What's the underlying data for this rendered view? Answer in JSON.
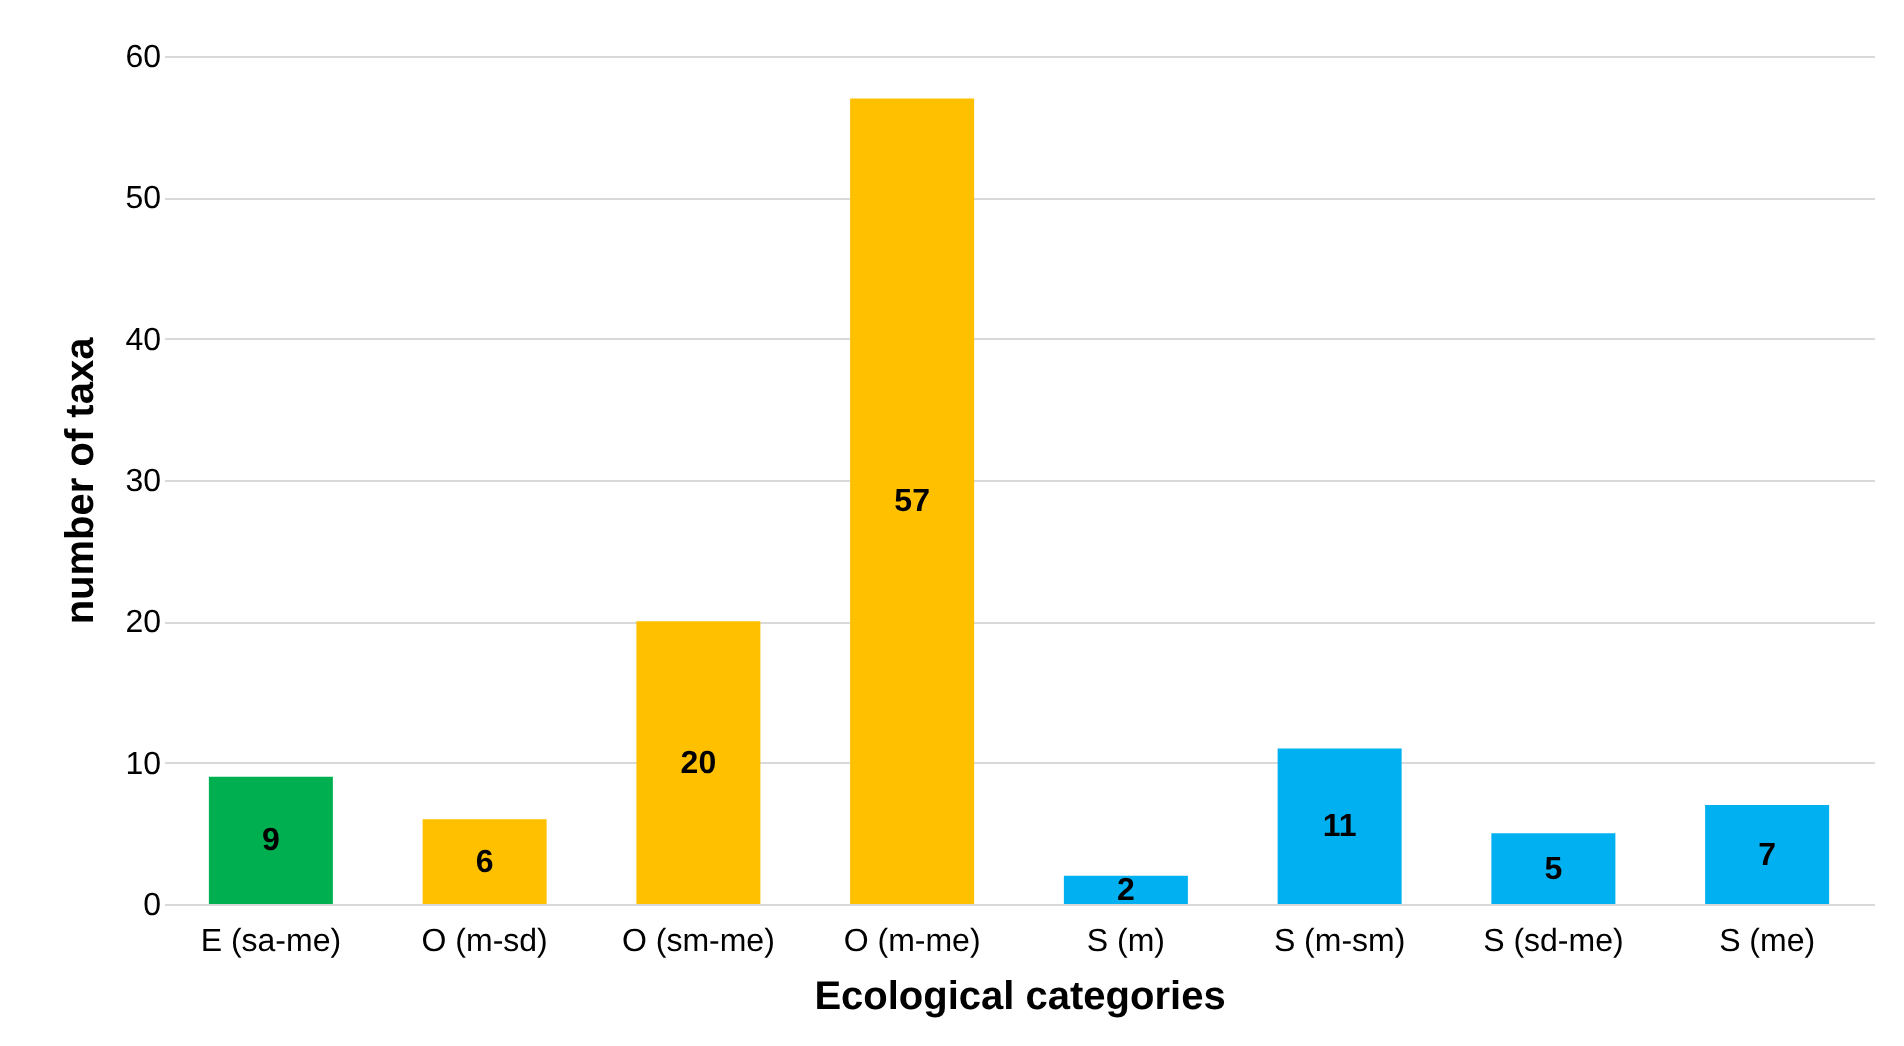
{
  "chart_data": {
    "type": "bar",
    "xlabel": "Ecological categories",
    "ylabel": "number of taxa",
    "categories": [
      "E (sa-me)",
      "O (m-sd)",
      "O (sm-me)",
      "O (m-me)",
      "S (m)",
      "S (m-sm)",
      "S (sd-me)",
      "S (me)"
    ],
    "values": [
      9,
      6,
      20,
      57,
      2,
      11,
      5,
      7
    ],
    "colors": [
      "#00b050",
      "#ffc000",
      "#ffc000",
      "#ffc000",
      "#00b0f0",
      "#00b0f0",
      "#00b0f0",
      "#00b0f0"
    ],
    "ylim": [
      0,
      60
    ],
    "yticks": [
      0,
      10,
      20,
      30,
      40,
      50,
      60
    ],
    "grid": "y",
    "data_labels": true
  }
}
